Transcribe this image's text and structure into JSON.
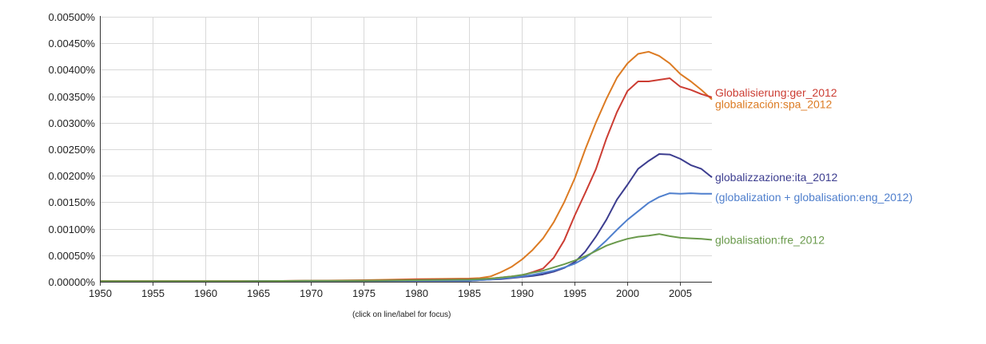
{
  "chart_data": {
    "type": "line",
    "xlim": [
      1950,
      2008
    ],
    "ylim": [
      0,
      0.005
    ],
    "x_ticks": [
      1950,
      1955,
      1960,
      1965,
      1970,
      1975,
      1980,
      1985,
      1990,
      1995,
      2000,
      2005
    ],
    "y_ticks": [
      "0.00000%",
      "0.00050%",
      "0.00100%",
      "0.00150%",
      "0.00200%",
      "0.00250%",
      "0.00300%",
      "0.00350%",
      "0.00400%",
      "0.00450%",
      "0.00500%"
    ],
    "y_tick_values": [
      0,
      0.0005,
      0.001,
      0.0015,
      0.002,
      0.0025,
      0.003,
      0.0035,
      0.004,
      0.0045,
      0.005
    ],
    "grid": true,
    "note": "(click on line/label for focus)",
    "series": [
      {
        "name": "globalización:spa_2012",
        "color": "#dc7b23",
        "points": [
          [
            1950,
            1e-05
          ],
          [
            1960,
            1e-05
          ],
          [
            1965,
            1e-05
          ],
          [
            1970,
            2e-05
          ],
          [
            1975,
            3e-05
          ],
          [
            1980,
            5e-05
          ],
          [
            1985,
            6e-05
          ],
          [
            1986,
            7e-05
          ],
          [
            1987,
            0.0001
          ],
          [
            1988,
            0.00018
          ],
          [
            1989,
            0.00028
          ],
          [
            1990,
            0.00042
          ],
          [
            1991,
            0.0006
          ],
          [
            1992,
            0.00082
          ],
          [
            1993,
            0.00112
          ],
          [
            1994,
            0.0015
          ],
          [
            1995,
            0.00195
          ],
          [
            1996,
            0.0025
          ],
          [
            1997,
            0.003
          ],
          [
            1998,
            0.00345
          ],
          [
            1999,
            0.00385
          ],
          [
            2000,
            0.00412
          ],
          [
            2001,
            0.0043
          ],
          [
            2002,
            0.00434
          ],
          [
            2003,
            0.00426
          ],
          [
            2004,
            0.00412
          ],
          [
            2005,
            0.00392
          ],
          [
            2006,
            0.00378
          ],
          [
            2007,
            0.00362
          ],
          [
            2008,
            0.00344
          ]
        ]
      },
      {
        "name": "Globalisierung:ger_2012",
        "color": "#cc3d33",
        "points": [
          [
            1950,
            1e-05
          ],
          [
            1960,
            1e-05
          ],
          [
            1965,
            1e-05
          ],
          [
            1970,
            2e-05
          ],
          [
            1975,
            2e-05
          ],
          [
            1980,
            4e-05
          ],
          [
            1985,
            5e-05
          ],
          [
            1986,
            5e-05
          ],
          [
            1987,
            6e-05
          ],
          [
            1988,
            8e-05
          ],
          [
            1989,
            0.0001
          ],
          [
            1990,
            0.00012
          ],
          [
            1991,
            0.00018
          ],
          [
            1992,
            0.00025
          ],
          [
            1993,
            0.00045
          ],
          [
            1994,
            0.00078
          ],
          [
            1995,
            0.00125
          ],
          [
            1996,
            0.00168
          ],
          [
            1997,
            0.00212
          ],
          [
            1998,
            0.0027
          ],
          [
            1999,
            0.0032
          ],
          [
            2000,
            0.0036
          ],
          [
            2001,
            0.00378
          ],
          [
            2002,
            0.00378
          ],
          [
            2003,
            0.00381
          ],
          [
            2004,
            0.00384
          ],
          [
            2005,
            0.00368
          ],
          [
            2006,
            0.00362
          ],
          [
            2007,
            0.00354
          ],
          [
            2008,
            0.00348
          ]
        ]
      },
      {
        "name": "globalizzazione:ita_2012",
        "color": "#3c3d8f",
        "points": [
          [
            1950,
            0.0
          ],
          [
            1960,
            0.0
          ],
          [
            1965,
            1e-05
          ],
          [
            1970,
            1e-05
          ],
          [
            1975,
            2e-05
          ],
          [
            1980,
            2e-05
          ],
          [
            1985,
            2e-05
          ],
          [
            1986,
            3e-05
          ],
          [
            1987,
            4e-05
          ],
          [
            1988,
            5e-05
          ],
          [
            1989,
            7e-05
          ],
          [
            1990,
            9e-05
          ],
          [
            1991,
            0.00011
          ],
          [
            1992,
            0.00014
          ],
          [
            1993,
            0.00019
          ],
          [
            1994,
            0.00026
          ],
          [
            1995,
            0.00037
          ],
          [
            1996,
            0.00057
          ],
          [
            1997,
            0.00085
          ],
          [
            1998,
            0.00117
          ],
          [
            1999,
            0.00155
          ],
          [
            2000,
            0.00183
          ],
          [
            2001,
            0.00213
          ],
          [
            2002,
            0.00228
          ],
          [
            2003,
            0.00241
          ],
          [
            2004,
            0.0024
          ],
          [
            2005,
            0.00232
          ],
          [
            2006,
            0.0022
          ],
          [
            2007,
            0.00213
          ],
          [
            2008,
            0.00197
          ]
        ]
      },
      {
        "name": "(globalization + globalisation:eng_2012)",
        "color": "#4f7fcd",
        "points": [
          [
            1950,
            0.0
          ],
          [
            1960,
            0.0
          ],
          [
            1965,
            1e-05
          ],
          [
            1970,
            1e-05
          ],
          [
            1975,
            1e-05
          ],
          [
            1980,
            2e-05
          ],
          [
            1985,
            2e-05
          ],
          [
            1986,
            3e-05
          ],
          [
            1987,
            4e-05
          ],
          [
            1988,
            6e-05
          ],
          [
            1989,
            8e-05
          ],
          [
            1990,
            0.0001
          ],
          [
            1991,
            0.00013
          ],
          [
            1992,
            0.00017
          ],
          [
            1993,
            0.00021
          ],
          [
            1994,
            0.00027
          ],
          [
            1995,
            0.00034
          ],
          [
            1996,
            0.00045
          ],
          [
            1997,
            0.0006
          ],
          [
            1998,
            0.00078
          ],
          [
            1999,
            0.00098
          ],
          [
            2000,
            0.00117
          ],
          [
            2001,
            0.00133
          ],
          [
            2002,
            0.00149
          ],
          [
            2003,
            0.0016
          ],
          [
            2004,
            0.00167
          ],
          [
            2005,
            0.00166
          ],
          [
            2006,
            0.00167
          ],
          [
            2007,
            0.00166
          ],
          [
            2008,
            0.00166
          ]
        ]
      },
      {
        "name": "globalisation:fre_2012",
        "color": "#6a9a4c",
        "points": [
          [
            1950,
            1e-05
          ],
          [
            1960,
            1e-05
          ],
          [
            1965,
            1e-05
          ],
          [
            1970,
            2e-05
          ],
          [
            1975,
            2e-05
          ],
          [
            1980,
            3e-05
          ],
          [
            1985,
            4e-05
          ],
          [
            1986,
            5e-05
          ],
          [
            1987,
            6e-05
          ],
          [
            1988,
            8e-05
          ],
          [
            1989,
            0.0001
          ],
          [
            1990,
            0.00013
          ],
          [
            1991,
            0.00017
          ],
          [
            1992,
            0.00021
          ],
          [
            1993,
            0.00027
          ],
          [
            1994,
            0.00033
          ],
          [
            1995,
            0.0004
          ],
          [
            1996,
            0.00048
          ],
          [
            1997,
            0.00058
          ],
          [
            1998,
            0.00068
          ],
          [
            1999,
            0.00075
          ],
          [
            2000,
            0.00081
          ],
          [
            2001,
            0.00085
          ],
          [
            2002,
            0.00087
          ],
          [
            2003,
            0.0009
          ],
          [
            2004,
            0.00086
          ],
          [
            2005,
            0.00083
          ],
          [
            2006,
            0.00082
          ],
          [
            2007,
            0.00081
          ],
          [
            2008,
            0.00079
          ]
        ]
      }
    ]
  }
}
